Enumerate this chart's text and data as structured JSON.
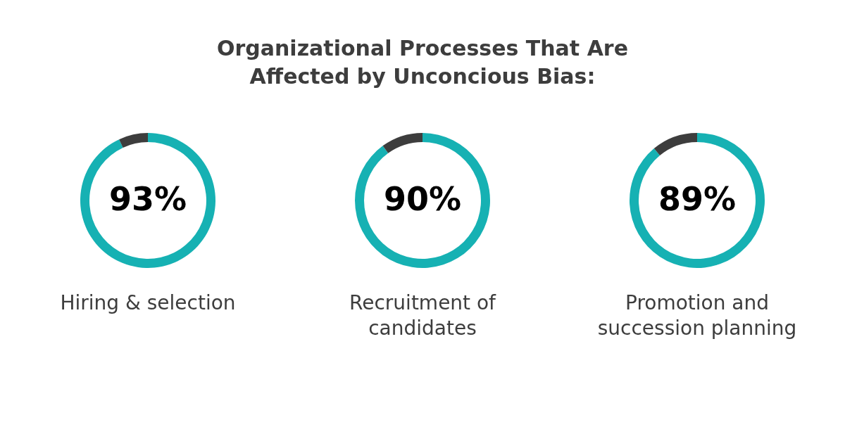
{
  "chart_data": [
    {
      "type": "other",
      "title": "Organizational Processes That Are\nAffected by Unconcious Bias:"
    },
    {
      "type": "donut",
      "xlabel": "Hiring & selection",
      "categories": [
        null,
        null
      ],
      "values": [
        93,
        7
      ],
      "colors": [
        "#16b1b3",
        "#3d3d3d"
      ],
      "value_labels": [
        "93%",
        null
      ],
      "legend": false
    },
    {
      "type": "donut",
      "xlabel": "Recruitment of\ncandidates",
      "categories": [
        null,
        null
      ],
      "values": [
        90,
        10
      ],
      "colors": [
        "#16b1b3",
        "#3d3d3d"
      ],
      "value_labels": [
        "90%",
        null
      ],
      "legend": false
    },
    {
      "type": "donut",
      "xlabel": "Promotion and\nsuccession planning",
      "categories": [
        null,
        null
      ],
      "values": [
        89,
        11
      ],
      "colors": [
        "#16b1b3",
        "#3d3d3d"
      ],
      "value_labels": [
        "89%",
        null
      ],
      "legend": false
    }
  ]
}
